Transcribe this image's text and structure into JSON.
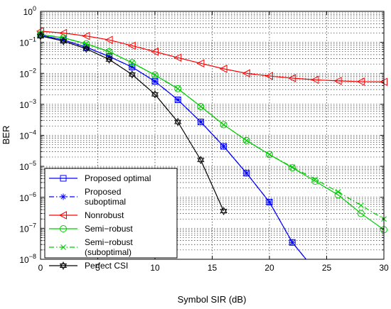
{
  "chart_data": {
    "type": "line",
    "xlabel": "Symbol SIR (dB)",
    "ylabel": "BER",
    "xlim": [
      0,
      30
    ],
    "ylim_log10": [
      -8,
      0
    ],
    "yscale": "log",
    "grid": true,
    "legend_position": "bottom-left",
    "x_ticks": [
      0,
      5,
      10,
      15,
      20,
      25,
      30
    ],
    "x_tick_labels": [
      "0",
      "5",
      "10",
      "15",
      "20",
      "25",
      "30"
    ],
    "y_tick_exponents": [
      0,
      -1,
      -2,
      -3,
      -4,
      -5,
      -6,
      -7,
      -8
    ],
    "y_tick_base": "10",
    "series": [
      {
        "name": "Proposed optimal",
        "color": "#0000ff",
        "line": "solid",
        "marker": "square",
        "x": [
          0,
          2,
          4,
          6,
          8,
          10,
          12,
          14,
          16,
          18,
          20,
          22,
          23.2
        ],
        "y": [
          0.17,
          0.12,
          0.07,
          0.035,
          0.016,
          0.0055,
          0.0014,
          0.00027,
          4.4e-05,
          6e-06,
          7e-07,
          3.5e-08,
          1e-08
        ]
      },
      {
        "name": "Proposed suboptimal",
        "color": "#0000ff",
        "line": "dashdot",
        "marker": "asterisk",
        "x": [
          0,
          2,
          4,
          6,
          8,
          10,
          12,
          14,
          16,
          18,
          20,
          22,
          23.2
        ],
        "y": [
          0.17,
          0.12,
          0.07,
          0.035,
          0.016,
          0.0055,
          0.0014,
          0.00027,
          4.4e-05,
          6e-06,
          7e-07,
          3.5e-08,
          1e-08
        ]
      },
      {
        "name": "Nonrobust",
        "color": "#ff0000",
        "line": "solid",
        "marker": "triangle-left",
        "x": [
          0,
          2,
          4,
          6,
          8,
          10,
          12,
          14,
          16,
          18,
          20,
          22,
          24,
          26,
          28,
          30
        ],
        "y": [
          0.23,
          0.2,
          0.16,
          0.12,
          0.078,
          0.05,
          0.032,
          0.021,
          0.014,
          0.01,
          0.0082,
          0.007,
          0.0062,
          0.0057,
          0.0054,
          0.0053
        ]
      },
      {
        "name": "Semi-robust",
        "color": "#00cc00",
        "line": "solid",
        "marker": "circle",
        "x": [
          0,
          2,
          4,
          6,
          8,
          10,
          12,
          14,
          16,
          18,
          20,
          22,
          24,
          26,
          28,
          30
        ],
        "y": [
          0.18,
          0.14,
          0.09,
          0.05,
          0.022,
          0.0088,
          0.0032,
          0.00085,
          0.00022,
          6.8e-05,
          2.4e-05,
          9e-06,
          3.3e-06,
          1.2e-06,
          3e-07,
          9e-08
        ]
      },
      {
        "name": "Semi-robust (suboptimal)",
        "color": "#00cc00",
        "line": "dashdot",
        "marker": "x",
        "x": [
          0,
          2,
          4,
          6,
          8,
          10,
          12,
          14,
          16,
          18,
          20,
          22,
          24,
          26,
          28,
          30
        ],
        "y": [
          0.18,
          0.14,
          0.09,
          0.05,
          0.022,
          0.0088,
          0.0032,
          0.00085,
          0.00022,
          6.8e-05,
          2.4e-05,
          9.5e-06,
          3.8e-06,
          1.5e-06,
          5.5e-07,
          2e-07
        ]
      },
      {
        "name": "Perfect CSI",
        "color": "#000000",
        "line": "solid",
        "marker": "hexagram",
        "x": [
          0,
          2,
          4,
          6,
          8,
          10,
          12,
          14,
          16
        ],
        "y": [
          0.16,
          0.11,
          0.062,
          0.028,
          0.0092,
          0.0021,
          0.00027,
          1.6e-05,
          3.6e-07
        ]
      }
    ],
    "legend_entries": [
      {
        "lines": [
          "Proposed optimal"
        ],
        "series": 0
      },
      {
        "lines": [
          "Proposed",
          "suboptimal"
        ],
        "series": 1
      },
      {
        "lines": [
          "Nonrobust"
        ],
        "series": 2
      },
      {
        "lines": [
          "Semi−robust"
        ],
        "series": 3
      },
      {
        "lines": [
          "Semi−robust",
          "(suboptimal)"
        ],
        "series": 4
      },
      {
        "lines": [
          "Perfect CSI"
        ],
        "series": 5
      }
    ]
  }
}
